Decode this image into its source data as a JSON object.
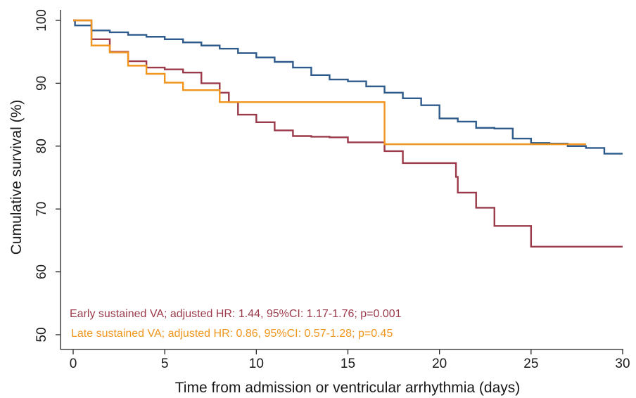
{
  "chart_data": {
    "type": "line",
    "step": true,
    "xlabel": "Time from admission or ventricular arrhythmia (days)",
    "ylabel": "Cumulative survival (%)",
    "xlim": [
      0,
      30
    ],
    "ylim": [
      50,
      100
    ],
    "xticks": [
      0,
      5,
      10,
      15,
      20,
      25,
      30
    ],
    "yticks": [
      50,
      60,
      70,
      80,
      90,
      100
    ],
    "grid": false,
    "legend": "none",
    "series": [
      {
        "color": "#2f5b8c",
        "x": [
          0,
          0.1,
          1,
          2,
          3,
          4,
          5,
          6,
          7,
          8,
          9,
          10,
          11,
          12,
          13,
          14,
          15,
          16,
          17,
          18,
          19,
          20,
          21,
          22,
          23,
          24,
          25,
          26,
          27,
          28,
          29,
          30
        ],
        "y": [
          100,
          99.2,
          98.4,
          98.1,
          97.7,
          97.4,
          97.0,
          96.5,
          96.0,
          95.5,
          94.8,
          94.1,
          93.4,
          92.5,
          91.3,
          90.6,
          90.3,
          89.5,
          88.5,
          87.6,
          86.5,
          84.4,
          83.9,
          82.9,
          82.8,
          81.2,
          80.5,
          80.4,
          80.0,
          79.7,
          78.8,
          78.8
        ]
      },
      {
        "color": "#9b3a4a",
        "x": [
          0,
          1,
          2,
          3,
          4,
          5,
          6,
          7,
          8,
          8.5,
          9,
          10,
          11,
          12,
          13,
          14,
          15,
          16,
          17,
          18,
          19,
          20,
          20.9,
          21,
          22,
          23,
          25,
          30
        ],
        "y": [
          100,
          97.0,
          95.0,
          93.5,
          92.5,
          92.2,
          91.7,
          90.0,
          88.5,
          87.0,
          85.0,
          83.8,
          82.5,
          81.6,
          81.5,
          81.4,
          80.6,
          80.6,
          79.2,
          77.3,
          77.3,
          77.3,
          75.1,
          72.6,
          70.2,
          67.3,
          64.0,
          64.0
        ]
      },
      {
        "color": "#f0961e",
        "x": [
          0,
          1,
          2,
          3,
          4,
          5,
          6,
          7,
          8,
          9,
          17,
          18,
          20,
          25,
          28
        ],
        "y": [
          100,
          96.0,
          94.9,
          92.8,
          91.5,
          90.1,
          88.9,
          88.9,
          87.0,
          87.0,
          80.3,
          80.3,
          80.3,
          80.3,
          80.3
        ]
      }
    ],
    "annotations": [
      {
        "text": "Early sustained VA; adjusted HR: 1.44, 95%CI: 1.17-1.76; p=0.001",
        "color": "#9b3a4a"
      },
      {
        "text": "Late sustained VA; adjusted HR: 0.86, 95%CI: 0.57-1.28; p=0.45",
        "color": "#f0961e"
      }
    ]
  }
}
